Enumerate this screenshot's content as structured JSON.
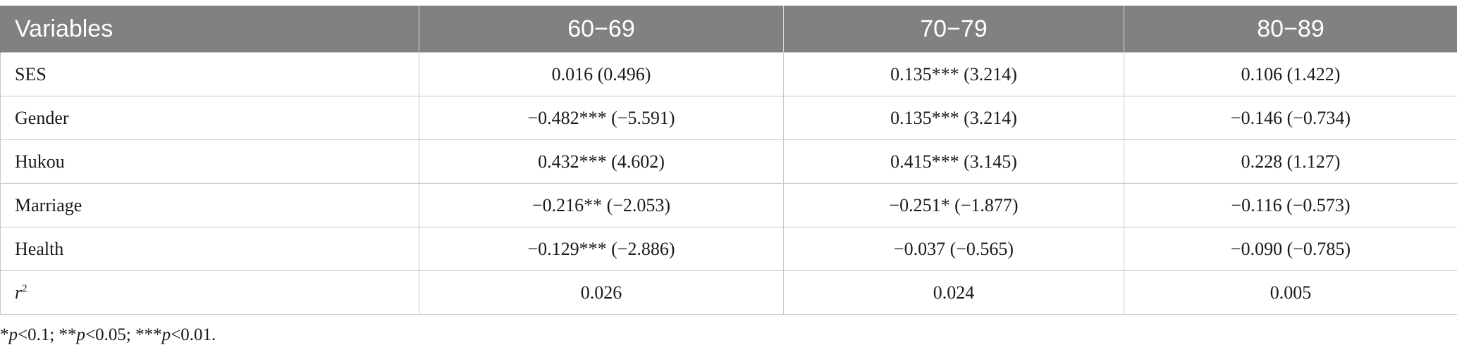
{
  "table": {
    "headers": [
      "Variables",
      "60−69",
      "70−79",
      "80−89"
    ],
    "rows": [
      {
        "variable": "SES",
        "cells": [
          "0.016 (0.496)",
          "0.135*** (3.214)",
          "0.106 (1.422)"
        ]
      },
      {
        "variable": "Gender",
        "cells": [
          "−0.482*** (−5.591)",
          "0.135*** (3.214)",
          "−0.146 (−0.734)"
        ]
      },
      {
        "variable": "Hukou",
        "cells": [
          "0.432*** (4.602)",
          "0.415*** (3.145)",
          "0.228 (1.127)"
        ]
      },
      {
        "variable": "Marriage",
        "cells": [
          "−0.216** (−2.053)",
          "−0.251* (−1.877)",
          "−0.116 (−0.573)"
        ]
      },
      {
        "variable": "Health",
        "cells": [
          "−0.129*** (−2.886)",
          "−0.037 (−0.565)",
          "−0.090 (−0.785)"
        ]
      },
      {
        "variable_base": "r",
        "variable_sup": "2",
        "cells": [
          "0.026",
          "0.024",
          "0.005"
        ]
      }
    ]
  },
  "footnote": {
    "items": [
      {
        "stars": "*",
        "p": "p",
        "rest": "<0.1; "
      },
      {
        "stars": "**",
        "p": "p",
        "rest": "<0.05; "
      },
      {
        "stars": "***",
        "p": "p",
        "rest": "<0.01."
      }
    ]
  },
  "colors": {
    "header_bg": "#818181",
    "header_text": "#ffffff",
    "grid": "#c9c9c9"
  }
}
